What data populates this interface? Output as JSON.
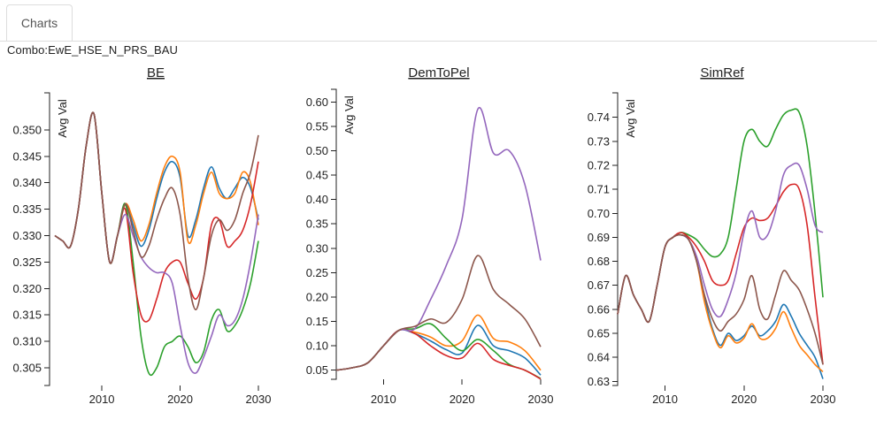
{
  "tabs": [
    {
      "label": "Charts"
    }
  ],
  "combo_label": "Combo:EwE_HSE_N_PRS_BAU",
  "colors": [
    "#1f77b4",
    "#ff7f0e",
    "#2ca02c",
    "#d62728",
    "#9467bd",
    "#8c564b"
  ],
  "chart_data": [
    {
      "type": "line",
      "title": "BE",
      "ylabel": "Avg Val",
      "xlabel": "",
      "xlim": [
        2004,
        2030
      ],
      "ylim": [
        0.302,
        0.356
      ],
      "x_ticks": [
        2010,
        2020,
        2030
      ],
      "y_ticks": [
        "0.305",
        "0.310",
        "0.315",
        "0.320",
        "0.325",
        "0.330",
        "0.335",
        "0.340",
        "0.345",
        "0.350"
      ],
      "x": [
        2004,
        2005,
        2006,
        2007,
        2008,
        2009,
        2010,
        2011,
        2012,
        2013,
        2014,
        2015,
        2016,
        2017,
        2018,
        2019,
        2020,
        2021,
        2022,
        2023,
        2024,
        2025,
        2026,
        2027,
        2028,
        2029,
        2030
      ],
      "series": [
        {
          "values": [
            0.33,
            0.329,
            0.328,
            0.335,
            0.347,
            0.353,
            0.338,
            0.325,
            0.33,
            0.336,
            0.332,
            0.328,
            0.331,
            0.337,
            0.342,
            0.344,
            0.341,
            0.33,
            0.333,
            0.339,
            0.343,
            0.339,
            0.337,
            0.339,
            0.341,
            0.339,
            0.333
          ]
        },
        {
          "values": [
            0.33,
            0.329,
            0.328,
            0.335,
            0.347,
            0.353,
            0.338,
            0.325,
            0.33,
            0.336,
            0.333,
            0.329,
            0.332,
            0.338,
            0.343,
            0.345,
            0.342,
            0.329,
            0.332,
            0.338,
            0.342,
            0.338,
            0.337,
            0.338,
            0.342,
            0.34,
            0.332
          ]
        },
        {
          "values": [
            0.33,
            0.329,
            0.328,
            0.335,
            0.347,
            0.353,
            0.338,
            0.325,
            0.33,
            0.336,
            0.325,
            0.311,
            0.304,
            0.305,
            0.309,
            0.31,
            0.311,
            0.309,
            0.306,
            0.308,
            0.314,
            0.316,
            0.312,
            0.313,
            0.316,
            0.321,
            0.329
          ]
        },
        {
          "values": [
            0.33,
            0.329,
            0.328,
            0.335,
            0.347,
            0.353,
            0.338,
            0.325,
            0.33,
            0.335,
            0.323,
            0.315,
            0.314,
            0.318,
            0.323,
            0.325,
            0.325,
            0.321,
            0.318,
            0.322,
            0.332,
            0.333,
            0.328,
            0.329,
            0.331,
            0.336,
            0.344
          ]
        },
        {
          "values": [
            0.33,
            0.329,
            0.328,
            0.335,
            0.347,
            0.353,
            0.338,
            0.325,
            0.33,
            0.334,
            0.33,
            0.326,
            0.324,
            0.323,
            0.323,
            0.321,
            0.313,
            0.306,
            0.304,
            0.307,
            0.311,
            0.315,
            0.313,
            0.314,
            0.318,
            0.325,
            0.334
          ]
        },
        {
          "values": [
            0.33,
            0.329,
            0.328,
            0.335,
            0.347,
            0.353,
            0.338,
            0.325,
            0.33,
            0.336,
            0.331,
            0.326,
            0.328,
            0.333,
            0.337,
            0.339,
            0.334,
            0.322,
            0.316,
            0.322,
            0.33,
            0.333,
            0.331,
            0.333,
            0.338,
            0.342,
            0.349
          ]
        }
      ]
    },
    {
      "type": "line",
      "title": "DemToPel",
      "ylabel": "Avg Val",
      "xlabel": "",
      "xlim": [
        2004,
        2030
      ],
      "ylim": [
        0.035,
        0.615
      ],
      "x_ticks": [
        2010,
        2020,
        2030
      ],
      "y_ticks": [
        "0.05",
        "0.10",
        "0.15",
        "0.20",
        "0.25",
        "0.30",
        "0.35",
        "0.40",
        "0.45",
        "0.50",
        "0.55",
        "0.60"
      ],
      "x": [
        2004,
        2006,
        2008,
        2010,
        2012,
        2014,
        2016,
        2018,
        2020,
        2022,
        2024,
        2026,
        2028,
        2030
      ],
      "series": [
        {
          "values": [
            0.05,
            0.055,
            0.065,
            0.1,
            0.132,
            0.125,
            0.11,
            0.092,
            0.085,
            0.142,
            0.1,
            0.09,
            0.075,
            0.04
          ]
        },
        {
          "values": [
            0.05,
            0.055,
            0.065,
            0.1,
            0.132,
            0.128,
            0.118,
            0.1,
            0.11,
            0.163,
            0.115,
            0.108,
            0.09,
            0.05
          ]
        },
        {
          "values": [
            0.05,
            0.055,
            0.065,
            0.1,
            0.132,
            0.135,
            0.145,
            0.115,
            0.09,
            0.113,
            0.09,
            0.062,
            0.05,
            0.033
          ]
        },
        {
          "values": [
            0.05,
            0.055,
            0.065,
            0.1,
            0.132,
            0.125,
            0.1,
            0.08,
            0.075,
            0.105,
            0.072,
            0.06,
            0.05,
            0.032
          ]
        },
        {
          "values": [
            0.05,
            0.055,
            0.065,
            0.1,
            0.132,
            0.135,
            0.195,
            0.265,
            0.36,
            0.585,
            0.495,
            0.5,
            0.43,
            0.275
          ]
        },
        {
          "values": [
            0.05,
            0.055,
            0.065,
            0.1,
            0.132,
            0.14,
            0.155,
            0.148,
            0.195,
            0.285,
            0.215,
            0.185,
            0.155,
            0.098
          ]
        }
      ]
    },
    {
      "type": "line",
      "title": "SimRef",
      "ylabel": "Avg Val",
      "xlabel": "",
      "xlim": [
        2004,
        2030
      ],
      "ylim": [
        0.629,
        0.748
      ],
      "x_ticks": [
        2010,
        2020,
        2030
      ],
      "y_ticks": [
        "0.63",
        "0.64",
        "0.65",
        "0.66",
        "0.67",
        "0.68",
        "0.69",
        "0.70",
        "0.71",
        "0.72",
        "0.73",
        "0.74"
      ],
      "x": [
        2004,
        2005,
        2006,
        2007,
        2008,
        2009,
        2010,
        2011,
        2012,
        2013,
        2014,
        2015,
        2016,
        2017,
        2018,
        2019,
        2020,
        2021,
        2022,
        2023,
        2024,
        2025,
        2026,
        2027,
        2028,
        2029,
        2030
      ],
      "series": [
        {
          "values": [
            0.658,
            0.674,
            0.666,
            0.66,
            0.655,
            0.67,
            0.686,
            0.69,
            0.691,
            0.689,
            0.68,
            0.665,
            0.652,
            0.645,
            0.65,
            0.647,
            0.649,
            0.653,
            0.649,
            0.651,
            0.655,
            0.662,
            0.657,
            0.65,
            0.645,
            0.64,
            0.631
          ]
        },
        {
          "values": [
            0.658,
            0.674,
            0.666,
            0.66,
            0.655,
            0.67,
            0.686,
            0.69,
            0.691,
            0.689,
            0.68,
            0.663,
            0.651,
            0.644,
            0.649,
            0.646,
            0.648,
            0.654,
            0.648,
            0.648,
            0.652,
            0.659,
            0.652,
            0.645,
            0.641,
            0.637,
            0.634
          ]
        },
        {
          "values": [
            0.658,
            0.674,
            0.666,
            0.66,
            0.655,
            0.67,
            0.686,
            0.69,
            0.692,
            0.691,
            0.689,
            0.685,
            0.682,
            0.683,
            0.69,
            0.71,
            0.73,
            0.735,
            0.73,
            0.728,
            0.735,
            0.741,
            0.743,
            0.742,
            0.728,
            0.7,
            0.665
          ]
        },
        {
          "values": [
            0.658,
            0.674,
            0.666,
            0.66,
            0.655,
            0.67,
            0.686,
            0.69,
            0.692,
            0.69,
            0.686,
            0.68,
            0.672,
            0.67,
            0.672,
            0.683,
            0.694,
            0.698,
            0.697,
            0.698,
            0.703,
            0.709,
            0.712,
            0.71,
            0.695,
            0.665,
            0.637
          ]
        },
        {
          "values": [
            0.658,
            0.674,
            0.666,
            0.66,
            0.655,
            0.67,
            0.686,
            0.69,
            0.691,
            0.689,
            0.682,
            0.67,
            0.66,
            0.657,
            0.664,
            0.675,
            0.692,
            0.701,
            0.69,
            0.691,
            0.701,
            0.716,
            0.72,
            0.72,
            0.71,
            0.695,
            0.692
          ]
        },
        {
          "values": [
            0.658,
            0.674,
            0.666,
            0.66,
            0.655,
            0.67,
            0.686,
            0.69,
            0.691,
            0.689,
            0.68,
            0.666,
            0.656,
            0.651,
            0.655,
            0.658,
            0.664,
            0.674,
            0.66,
            0.656,
            0.666,
            0.676,
            0.672,
            0.668,
            0.66,
            0.65,
            0.637
          ]
        }
      ]
    }
  ]
}
